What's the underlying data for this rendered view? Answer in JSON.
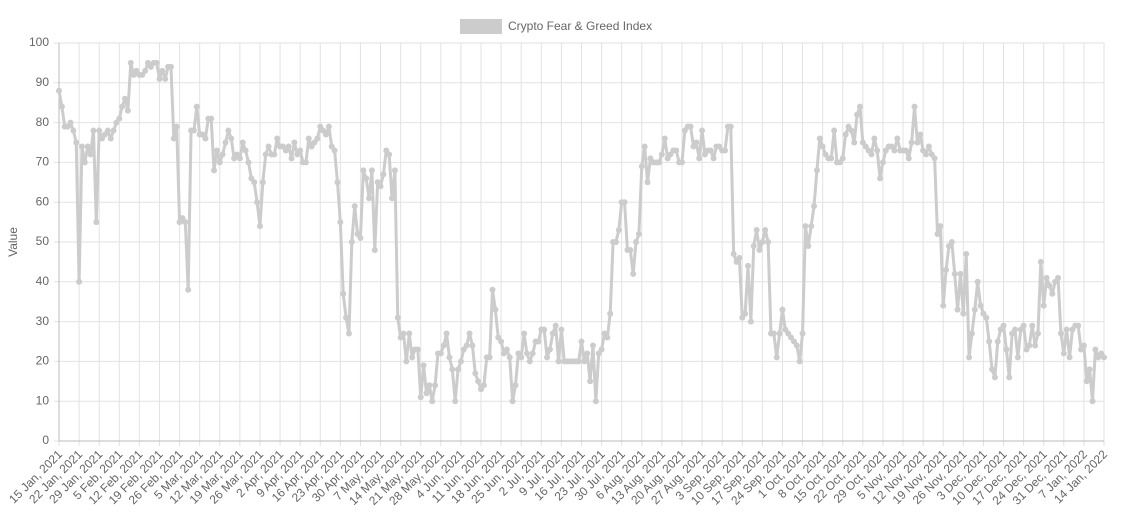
{
  "chart_data": {
    "type": "line",
    "y_label": "Value",
    "categories": [
      "15 Jan, 2021",
      null,
      null,
      null,
      null,
      null,
      null,
      "22 Jan, 2021",
      null,
      null,
      null,
      null,
      null,
      null,
      "29 Jan, 2021",
      null,
      null,
      null,
      null,
      null,
      null,
      "5 Feb, 2021",
      null,
      null,
      null,
      null,
      null,
      null,
      "12 Feb, 2021",
      null,
      null,
      null,
      null,
      null,
      null,
      "19 Feb, 2021",
      null,
      null,
      null,
      null,
      null,
      null,
      "26 Feb, 2021",
      null,
      null,
      null,
      null,
      null,
      null,
      "5 Mar, 2021",
      null,
      null,
      null,
      null,
      null,
      null,
      "12 Mar, 2021",
      null,
      null,
      null,
      null,
      null,
      null,
      "19 Mar, 2021",
      null,
      null,
      null,
      null,
      null,
      null,
      "26 Mar, 2021",
      null,
      null,
      null,
      null,
      null,
      null,
      "2 Apr, 2021",
      null,
      null,
      null,
      null,
      null,
      null,
      "9 Apr, 2021",
      null,
      null,
      null,
      null,
      null,
      null,
      "16 Apr, 2021",
      null,
      null,
      null,
      null,
      null,
      null,
      "23 Apr, 2021",
      null,
      null,
      null,
      null,
      null,
      null,
      "30 Apr, 2021",
      null,
      null,
      null,
      null,
      null,
      null,
      "7 May, 2021",
      null,
      null,
      null,
      null,
      null,
      null,
      "14 May, 2021",
      null,
      null,
      null,
      null,
      null,
      null,
      "21 May, 2021",
      null,
      null,
      null,
      null,
      null,
      null,
      "28 May, 2021",
      null,
      null,
      null,
      null,
      null,
      null,
      "4 Jun, 2021",
      null,
      null,
      null,
      null,
      null,
      null,
      "11 Jun, 2021",
      null,
      null,
      null,
      null,
      null,
      null,
      "18 Jun, 2021",
      null,
      null,
      null,
      null,
      null,
      null,
      "25 Jun, 2021",
      null,
      null,
      null,
      null,
      null,
      null,
      "2 Jul, 2021",
      null,
      null,
      null,
      null,
      null,
      null,
      "9 Jul, 2021",
      null,
      null,
      null,
      null,
      null,
      null,
      "16 Jul, 2021",
      null,
      null,
      null,
      null,
      null,
      null,
      "23 Jul, 2021",
      null,
      null,
      null,
      null,
      null,
      null,
      "30 Jul, 2021",
      null,
      null,
      null,
      null,
      null,
      null,
      "6 Aug, 2021",
      null,
      null,
      null,
      null,
      null,
      null,
      "13 Aug, 2021",
      null,
      null,
      null,
      null,
      null,
      null,
      "20 Aug, 2021",
      null,
      null,
      null,
      null,
      null,
      null,
      "27 Aug, 2021",
      null,
      null,
      null,
      null,
      null,
      null,
      "3 Sep, 2021",
      null,
      null,
      null,
      null,
      null,
      null,
      "10 Sep, 2021",
      null,
      null,
      null,
      null,
      null,
      null,
      "17 Sep, 2021",
      null,
      null,
      null,
      null,
      null,
      null,
      "24 Sep, 2021",
      null,
      null,
      null,
      null,
      null,
      null,
      "1 Oct, 2021",
      null,
      null,
      null,
      null,
      null,
      null,
      "8 Oct, 2021",
      null,
      null,
      null,
      null,
      null,
      null,
      "15 Oct, 2021",
      null,
      null,
      null,
      null,
      null,
      null,
      "22 Oct, 2021",
      null,
      null,
      null,
      null,
      null,
      null,
      "29 Oct, 2021",
      null,
      null,
      null,
      null,
      null,
      null,
      "5 Nov, 2021",
      null,
      null,
      null,
      null,
      null,
      null,
      "12 Nov, 2021",
      null,
      null,
      null,
      null,
      null,
      null,
      "19 Nov, 2021",
      null,
      null,
      null,
      null,
      null,
      null,
      "26 Nov, 2021",
      null,
      null,
      null,
      null,
      null,
      null,
      "3 Dec, 2021",
      null,
      null,
      null,
      null,
      null,
      null,
      "10 Dec, 2021",
      null,
      null,
      null,
      null,
      null,
      null,
      "17 Dec, 2021",
      null,
      null,
      null,
      null,
      null,
      null,
      "24 Dec, 2021",
      null,
      null,
      null,
      null,
      null,
      null,
      "31 Dec, 2021",
      null,
      null,
      null,
      null,
      null,
      null,
      "7 Jan, 2022",
      null,
      null,
      null,
      null,
      null,
      null,
      "14 Jan, 2022"
    ],
    "series": [
      {
        "name": "Crypto Fear & Greed Index",
        "color": "#cccccc",
        "values": [
          88,
          84,
          79,
          79,
          80,
          78,
          75,
          40,
          74,
          70,
          74,
          72,
          78,
          55,
          78,
          76,
          77,
          78,
          76,
          78,
          80,
          81,
          84,
          86,
          83,
          95,
          92,
          93,
          92,
          92,
          93,
          95,
          94,
          95,
          95,
          91,
          93,
          91,
          94,
          94,
          76,
          79,
          55,
          56,
          55,
          38,
          78,
          78,
          84,
          77,
          77,
          76,
          81,
          81,
          68,
          73,
          70,
          72,
          75,
          78,
          76,
          71,
          72,
          71,
          75,
          73,
          70,
          66,
          65,
          60,
          54,
          65,
          72,
          74,
          72,
          72,
          76,
          74,
          74,
          73,
          74,
          71,
          75,
          72,
          73,
          70,
          70,
          76,
          74,
          75,
          76,
          79,
          78,
          77,
          79,
          74,
          73,
          65,
          55,
          37,
          31,
          27,
          50,
          59,
          52,
          51,
          68,
          66,
          61,
          68,
          48,
          65,
          64,
          67,
          73,
          72,
          61,
          68,
          31,
          26,
          27,
          20,
          27,
          21,
          23,
          23,
          11,
          19,
          12,
          14,
          10,
          14,
          22,
          22,
          24,
          27,
          21,
          18,
          10,
          18,
          20,
          23,
          24,
          27,
          24,
          17,
          15,
          13,
          14,
          21,
          21,
          38,
          33,
          26,
          25,
          22,
          23,
          21,
          10,
          14,
          22,
          21,
          27,
          22,
          20,
          22,
          25,
          25,
          28,
          28,
          21,
          23,
          27,
          29,
          20,
          28,
          20,
          20,
          20,
          20,
          20,
          20,
          25,
          20,
          22,
          15,
          24,
          10,
          22,
          23,
          27,
          26,
          32,
          50,
          50,
          53,
          60,
          60,
          48,
          48,
          42,
          50,
          52,
          69,
          74,
          65,
          71,
          70,
          70,
          70,
          72,
          76,
          71,
          72,
          73,
          73,
          70,
          70,
          78,
          79,
          79,
          74,
          75,
          71,
          78,
          72,
          73,
          73,
          71,
          74,
          74,
          73,
          73,
          79,
          79,
          47,
          45,
          46,
          31,
          32,
          44,
          30,
          49,
          53,
          48,
          50,
          53,
          50,
          27,
          27,
          21,
          27,
          33,
          28,
          27,
          26,
          25,
          24,
          20,
          27,
          54,
          49,
          54,
          59,
          68,
          76,
          74,
          72,
          71,
          71,
          78,
          70,
          70,
          71,
          77,
          79,
          78,
          75,
          82,
          84,
          75,
          74,
          73,
          72,
          76,
          73,
          66,
          70,
          73,
          74,
          74,
          73,
          76,
          73,
          73,
          73,
          71,
          75,
          84,
          75,
          77,
          73,
          72,
          74,
          72,
          71,
          52,
          54,
          34,
          43,
          49,
          50,
          42,
          33,
          42,
          32,
          47,
          21,
          27,
          33,
          40,
          34,
          32,
          31,
          25,
          18,
          16,
          25,
          28,
          29,
          23,
          16,
          27,
          28,
          21,
          28,
          29,
          23,
          24,
          29,
          24,
          27,
          45,
          34,
          41,
          39,
          37,
          40,
          41,
          27,
          22,
          28,
          21,
          28,
          29,
          29,
          23,
          24,
          15,
          18,
          10,
          23,
          21,
          22,
          21
        ]
      }
    ],
    "ylim": [
      0,
      100
    ],
    "yticks": [
      0,
      10,
      20,
      30,
      40,
      50,
      60,
      70,
      80,
      90,
      100
    ],
    "grid": true,
    "legend": "top"
  }
}
